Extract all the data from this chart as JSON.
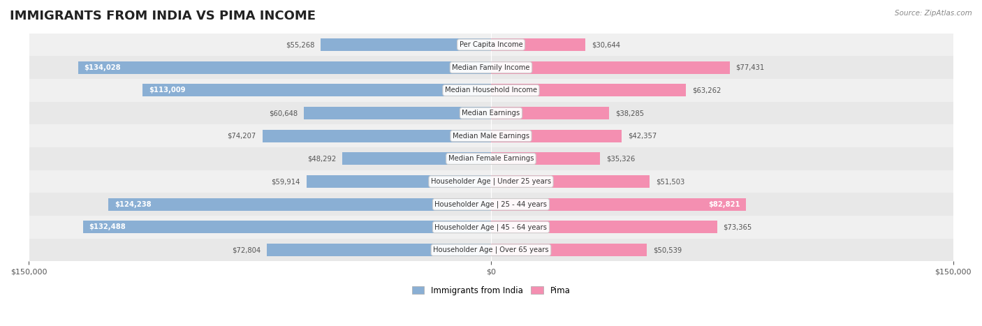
{
  "title": "IMMIGRANTS FROM INDIA VS PIMA INCOME",
  "source": "Source: ZipAtlas.com",
  "categories": [
    "Per Capita Income",
    "Median Family Income",
    "Median Household Income",
    "Median Earnings",
    "Median Male Earnings",
    "Median Female Earnings",
    "Householder Age | Under 25 years",
    "Householder Age | 25 - 44 years",
    "Householder Age | 45 - 64 years",
    "Householder Age | Over 65 years"
  ],
  "india_values": [
    55268,
    134028,
    113009,
    60648,
    74207,
    48292,
    59914,
    124238,
    132488,
    72804
  ],
  "pima_values": [
    30644,
    77431,
    63262,
    38285,
    42357,
    35326,
    51503,
    82821,
    73365,
    50539
  ],
  "india_labels": [
    "$55,268",
    "$134,028",
    "$113,009",
    "$60,648",
    "$74,207",
    "$48,292",
    "$59,914",
    "$124,238",
    "$132,488",
    "$72,804"
  ],
  "pima_labels": [
    "$30,644",
    "$77,431",
    "$63,262",
    "$38,285",
    "$42,357",
    "$35,326",
    "$51,503",
    "$82,821",
    "$73,365",
    "$50,539"
  ],
  "india_color": "#8aafd4",
  "pima_color": "#f48fb1",
  "india_color_dark": "#5b8ec4",
  "pima_color_dark": "#e91e8c",
  "bg_color": "#f5f5f5",
  "row_bg_light": "#efefef",
  "row_bg_dark": "#e8e8e8",
  "axis_limit": 150000,
  "bar_height": 0.55,
  "legend_india": "Immigrants from India",
  "legend_pima": "Pima"
}
